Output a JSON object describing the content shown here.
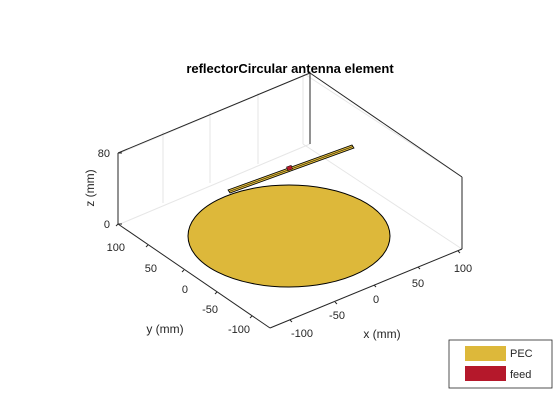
{
  "figure": {
    "title": "reflectorCircular antenna element"
  },
  "axes": {
    "x": {
      "label": "x (mm)",
      "ticks": [
        "-100",
        "-50",
        "0",
        "50",
        "100"
      ]
    },
    "y": {
      "label": "y (mm)",
      "ticks": [
        "100",
        "50",
        "0",
        "-50",
        "-100"
      ]
    },
    "z": {
      "label": "z (mm)",
      "ticks": [
        "80",
        "0"
      ]
    }
  },
  "legend": {
    "placement": "bottom-right",
    "items": [
      {
        "label": "PEC",
        "color": "#DDB83A"
      },
      {
        "label": "feed",
        "color": "#B5182B"
      }
    ]
  },
  "colors": {
    "reflector": "#DDB83A",
    "dipole": "#DDB83A",
    "feed": "#B5182B",
    "box": "#262626",
    "grid": "#e6e6e6"
  }
}
